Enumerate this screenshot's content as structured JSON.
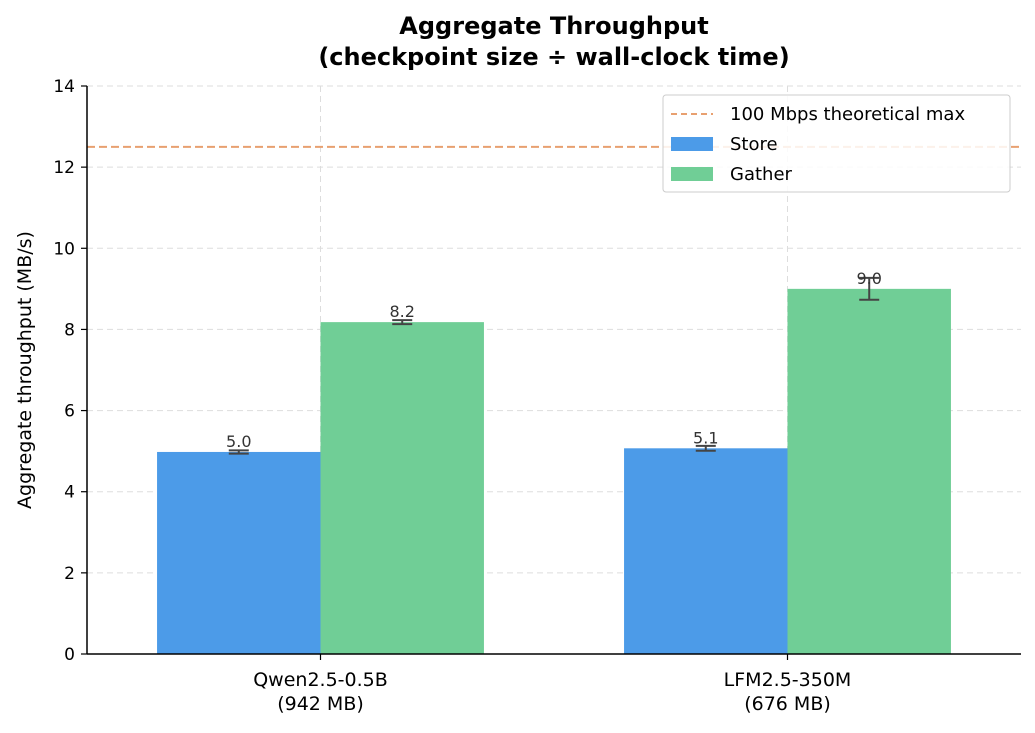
{
  "chart_data": {
    "type": "bar",
    "title": [
      "Aggregate Throughput",
      "(checkpoint size ÷ wall-clock time)"
    ],
    "ylabel": "Aggregate throughput (MB/s)",
    "xlabel": "",
    "ylim": [
      0,
      14
    ],
    "yticks": [
      0,
      2,
      4,
      6,
      8,
      10,
      12,
      14
    ],
    "grid": true,
    "legend_position": "top-right",
    "categories": [
      [
        "Qwen2.5-0.5B",
        "(942 MB)"
      ],
      [
        "LFM2.5-350M",
        "(676 MB)"
      ]
    ],
    "series": [
      {
        "name": "Store",
        "color": "#4c9be8",
        "values": [
          4.98,
          5.07
        ],
        "errors": [
          0.04,
          0.06
        ],
        "labels": [
          "5.0",
          "5.1"
        ]
      },
      {
        "name": "Gather",
        "color": "#70ce96",
        "values": [
          8.18,
          9.0
        ],
        "errors": [
          0.05,
          0.27
        ],
        "labels": [
          "8.2",
          "9.0"
        ]
      }
    ],
    "reference_line": {
      "name": "100 Mbps theoretical max",
      "value": 12.5,
      "color": "#e8a070"
    }
  }
}
